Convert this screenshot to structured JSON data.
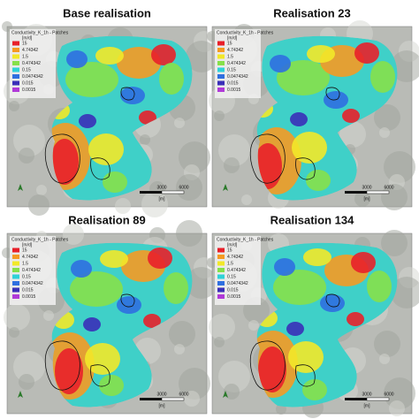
{
  "panels": [
    {
      "title": "Base realisation"
    },
    {
      "title": "Realisation 23"
    },
    {
      "title": "Realisation 89"
    },
    {
      "title": "Realisation 134"
    }
  ],
  "legend": {
    "title": "Conductivity_K_1h - Patches",
    "unit": "[m/d]",
    "entries": [
      {
        "label": "15",
        "color": "#e8202a"
      },
      {
        "label": "4.74342",
        "color": "#f59a23"
      },
      {
        "label": "1.5",
        "color": "#f2e829"
      },
      {
        "label": "0.474342",
        "color": "#86e04a"
      },
      {
        "label": "0.15",
        "color": "#2fd2d8"
      },
      {
        "label": "0.0474342",
        "color": "#2f6fe0"
      },
      {
        "label": "0.015",
        "color": "#3a2fb8"
      },
      {
        "label": "0.0015",
        "color": "#b03ad8"
      }
    ]
  },
  "scale": {
    "labels": [
      "3000",
      "6000"
    ],
    "unit": "[m]"
  }
}
